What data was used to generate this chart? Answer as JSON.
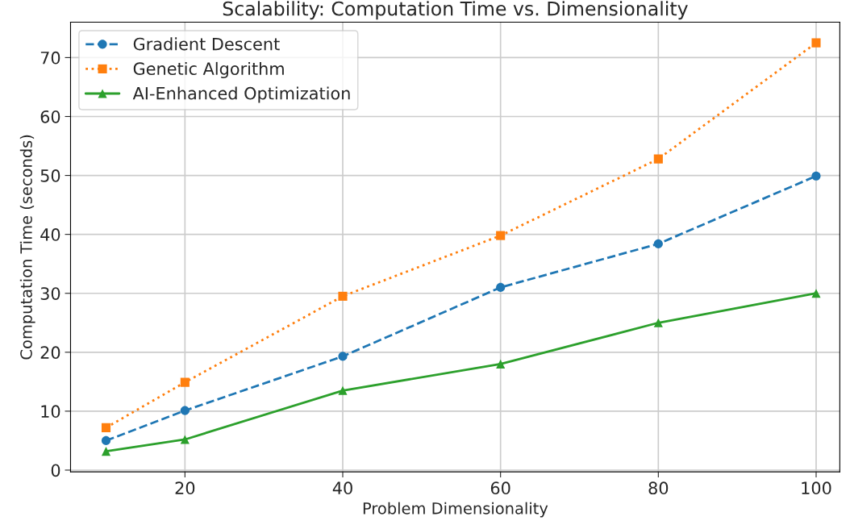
{
  "chart_data": {
    "type": "line",
    "title": "Scalability: Computation Time vs. Dimensionality",
    "xlabel": "Problem Dimensionality",
    "ylabel": "Computation Time (seconds)",
    "x": [
      10,
      20,
      40,
      60,
      80,
      100
    ],
    "series": [
      {
        "name": "Gradient Descent",
        "color": "#1f77b4",
        "values": [
          5.0,
          10.1,
          19.3,
          31.0,
          38.4,
          49.9
        ],
        "marker": "circle",
        "line_style": "dashed"
      },
      {
        "name": "Genetic Algorithm",
        "color": "#ff7f0e",
        "values": [
          7.2,
          14.9,
          29.5,
          39.8,
          52.8,
          72.5
        ],
        "marker": "square",
        "line_style": "dotted"
      },
      {
        "name": "AI-Enhanced Optimization",
        "color": "#2ca02c",
        "values": [
          3.2,
          5.2,
          13.5,
          18.0,
          25.0,
          30.0
        ],
        "marker": "triangle",
        "line_style": "solid"
      }
    ],
    "xlim": [
      5.5,
      103
    ],
    "xticks": [
      20,
      40,
      60,
      80,
      100
    ],
    "ylim": [
      -0.3,
      76
    ],
    "yticks": [
      0,
      10,
      20,
      30,
      40,
      50,
      60,
      70
    ],
    "grid": true,
    "legend": "top left"
  }
}
